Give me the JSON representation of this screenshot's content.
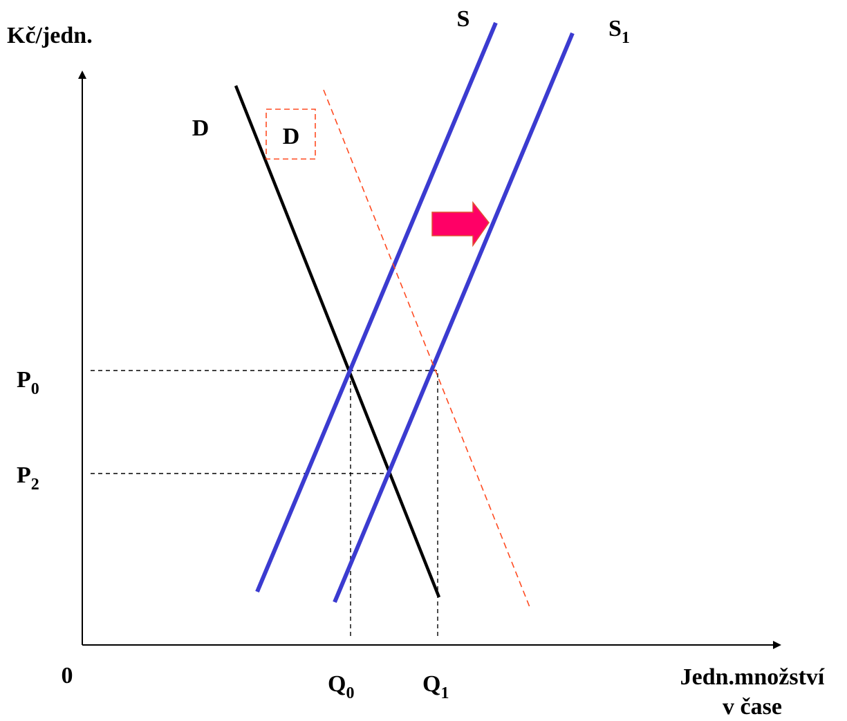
{
  "chart_data": {
    "type": "line",
    "title": "",
    "ylabel": "Kč/jedn.",
    "xlabel_lines": [
      "Jedn.množství",
      "v čase"
    ],
    "origin_label": "0",
    "grid": false,
    "colors": {
      "axis": "#000000",
      "demand": "#000000",
      "supply": "#3b3bd0",
      "shifted_demand": "#ff4a20",
      "arrow_fill": "#ff0066",
      "arrow_stroke": "#e05030",
      "guide": "#000000"
    },
    "curves": [
      {
        "id": "D",
        "label": "D",
        "kind": "demand",
        "style": "solid"
      },
      {
        "id": "S",
        "label": "S",
        "kind": "supply",
        "style": "solid"
      },
      {
        "id": "S1",
        "label": "S",
        "subscript": "1",
        "kind": "supply",
        "style": "solid"
      },
      {
        "id": "D_new",
        "label": "D",
        "kind": "demand",
        "style": "dashed",
        "boxed_label": true
      }
    ],
    "price_levels": [
      {
        "label": "P",
        "subscript": "0"
      },
      {
        "label": "P",
        "subscript": "2"
      }
    ],
    "quantity_levels": [
      {
        "label": "Q",
        "subscript": "0"
      },
      {
        "label": "Q",
        "subscript": "1"
      }
    ],
    "annotations": [
      {
        "type": "arrow",
        "direction": "right",
        "icon": "right-arrow-icon",
        "meaning": "supply shift from S to S1"
      }
    ]
  }
}
